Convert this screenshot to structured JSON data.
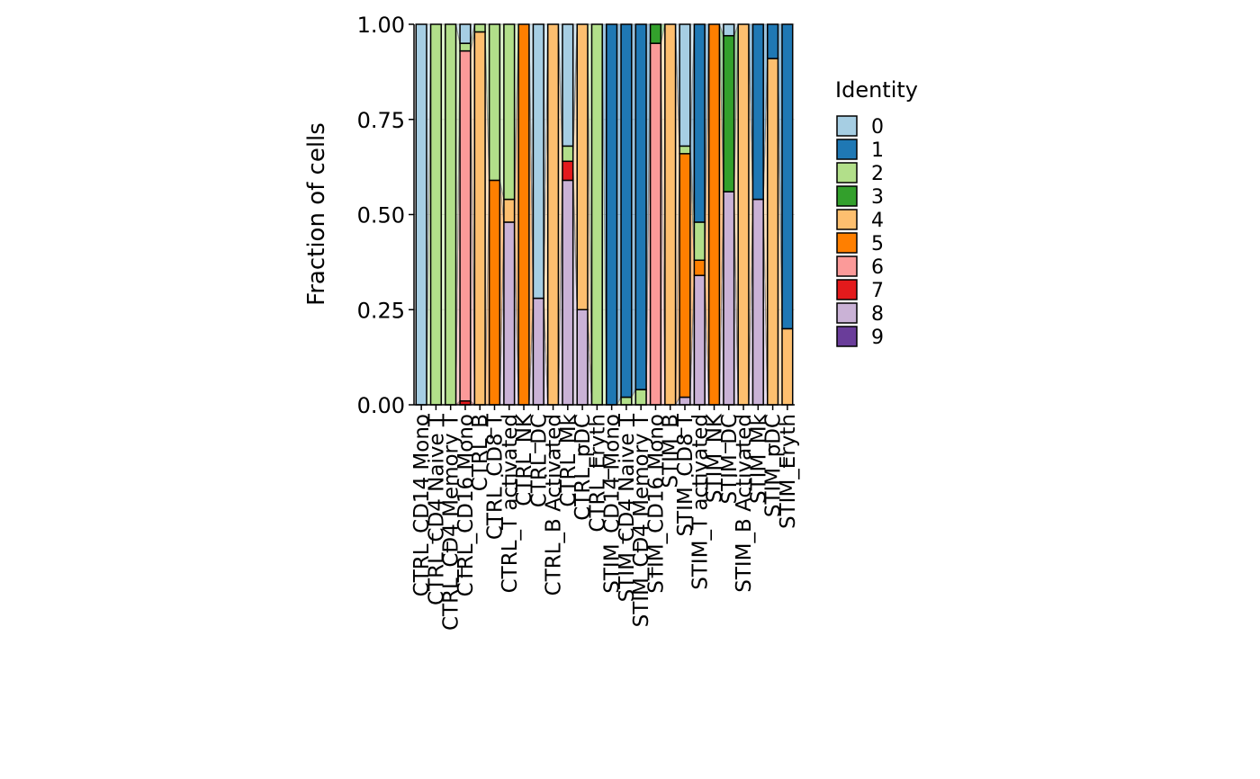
{
  "chart_data": {
    "type": "stacked_bar",
    "y_label": "Fraction of cells",
    "legend_title": "Identity",
    "categories": [
      "CTRL_CD14 Mono",
      "CTRL_CD4 Naive T",
      "CTRL_CD4 Memory T",
      "CTRL_CD16 Mono",
      "CTRL_B",
      "CTRL_CD8 T",
      "CTRL_T activated",
      "CTRL_NK",
      "CTRL_DC",
      "CTRL_B Activated",
      "CTRL_Mk",
      "CTRL_pDC",
      "CTRL_Eryth",
      "STIM_CD14 Mono",
      "STIM_CD4 Naive T",
      "STIM_CD4 Memory T",
      "STIM_CD16 Mono",
      "STIM_B",
      "STIM_CD8 T",
      "STIM_T activated",
      "STIM_NK",
      "STIM_DC",
      "STIM_B Activated",
      "STIM_Mk",
      "STIM_pDC",
      "STIM_Eryth"
    ],
    "series": [
      {
        "name": "0",
        "color": "#A6CEE3",
        "values": [
          1,
          0,
          0,
          0.05,
          0,
          0,
          0,
          0,
          0.72,
          0,
          0.32,
          0,
          0,
          0,
          0,
          0,
          0,
          0,
          0.32,
          0,
          0,
          0.03,
          0,
          0,
          0,
          0
        ]
      },
      {
        "name": "1",
        "color": "#1F78B4",
        "values": [
          0,
          0,
          0,
          0,
          0,
          0,
          0,
          0,
          0,
          0,
          0,
          0,
          0,
          1,
          0.98,
          0.96,
          0,
          0,
          0,
          0.52,
          0,
          0,
          0,
          0.46,
          0.09,
          0.8
        ]
      },
      {
        "name": "2",
        "color": "#B2DF8A",
        "values": [
          0,
          1,
          1,
          0.02,
          0.02,
          0.41,
          0.46,
          0,
          0,
          0,
          0.04,
          0,
          1,
          0,
          0.02,
          0.04,
          0,
          0,
          0.02,
          0.1,
          0,
          0,
          0,
          0,
          0,
          0
        ]
      },
      {
        "name": "3",
        "color": "#33A02C",
        "values": [
          0,
          0,
          0,
          0,
          0,
          0,
          0,
          0,
          0,
          0,
          0,
          0,
          0,
          0,
          0,
          0,
          0.05,
          0,
          0,
          0,
          0,
          0.41,
          0,
          0,
          0,
          0
        ]
      },
      {
        "name": "4",
        "color": "#FDBF6F",
        "values": [
          0,
          0,
          0,
          0,
          0.98,
          0,
          0.06,
          0,
          0,
          1,
          0,
          0.75,
          0,
          0,
          0,
          0,
          0,
          1,
          0,
          0,
          0,
          0,
          1,
          0,
          0.91,
          0.2
        ]
      },
      {
        "name": "5",
        "color": "#FF7F00",
        "values": [
          0,
          0,
          0,
          0,
          0,
          0.59,
          0,
          1,
          0,
          0,
          0,
          0,
          0,
          0,
          0,
          0,
          0,
          0,
          0.64,
          0.04,
          1,
          0,
          0,
          0,
          0,
          0
        ]
      },
      {
        "name": "6",
        "color": "#FB9A99",
        "values": [
          0,
          0,
          0,
          0.92,
          0,
          0,
          0,
          0,
          0,
          0,
          0,
          0,
          0,
          0,
          0,
          0,
          0.95,
          0,
          0,
          0,
          0,
          0,
          0,
          0,
          0,
          0
        ]
      },
      {
        "name": "7",
        "color": "#E31A1C",
        "values": [
          0,
          0,
          0,
          0.01,
          0,
          0,
          0,
          0,
          0,
          0,
          0.05,
          0,
          0,
          0,
          0,
          0,
          0,
          0,
          0,
          0,
          0,
          0,
          0,
          0,
          0,
          0
        ]
      },
      {
        "name": "8",
        "color": "#CAB2D6",
        "values": [
          0,
          0,
          0,
          0,
          0,
          0,
          0.48,
          0,
          0.28,
          0,
          0.59,
          0.25,
          0,
          0,
          0,
          0,
          0,
          0,
          0.02,
          0.34,
          0,
          0.56,
          0,
          0.54,
          0,
          0
        ]
      },
      {
        "name": "9",
        "color": "#6A3D9A",
        "values": [
          0,
          0,
          0,
          0,
          0,
          0,
          0,
          0,
          0,
          0,
          0,
          0,
          0,
          0,
          0,
          0,
          0,
          0,
          0,
          0,
          0,
          0,
          0,
          0,
          0,
          0
        ]
      }
    ],
    "ylim": [
      0,
      1
    ],
    "yticks": [
      {
        "value": 0,
        "label": "0.00"
      },
      {
        "value": 0.25,
        "label": "0.25"
      },
      {
        "value": 0.5,
        "label": "0.50"
      },
      {
        "value": 0.75,
        "label": "0.75"
      },
      {
        "value": 1,
        "label": "1.00"
      }
    ],
    "grid": true
  }
}
